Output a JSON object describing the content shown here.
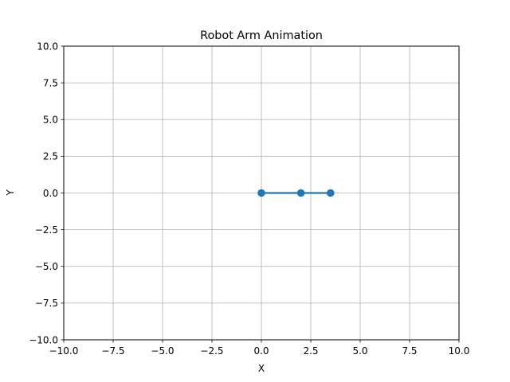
{
  "chart_data": {
    "type": "line",
    "title": "Robot Arm Animation",
    "xlabel": "X",
    "ylabel": "Y",
    "xlim": [
      -10,
      10
    ],
    "ylim": [
      -10,
      10
    ],
    "xticks": [
      -10,
      -7.5,
      -5,
      -2.5,
      0,
      2.5,
      5,
      7.5,
      10
    ],
    "yticks": [
      -10,
      -7.5,
      -5,
      -2.5,
      0,
      2.5,
      5,
      7.5,
      10
    ],
    "xtick_labels": [
      "−10.0",
      "−7.5",
      "−5.0",
      "−2.5",
      "0.0",
      "2.5",
      "5.0",
      "7.5",
      "10.0"
    ],
    "ytick_labels": [
      "−10.0",
      "−7.5",
      "−5.0",
      "−2.5",
      "0.0",
      "2.5",
      "5.0",
      "7.5",
      "10.0"
    ],
    "grid": true,
    "series": [
      {
        "x": [
          0,
          2,
          3.5
        ],
        "y": [
          0,
          0,
          0
        ],
        "color": "#1f77b4",
        "marker": "circle"
      }
    ]
  }
}
